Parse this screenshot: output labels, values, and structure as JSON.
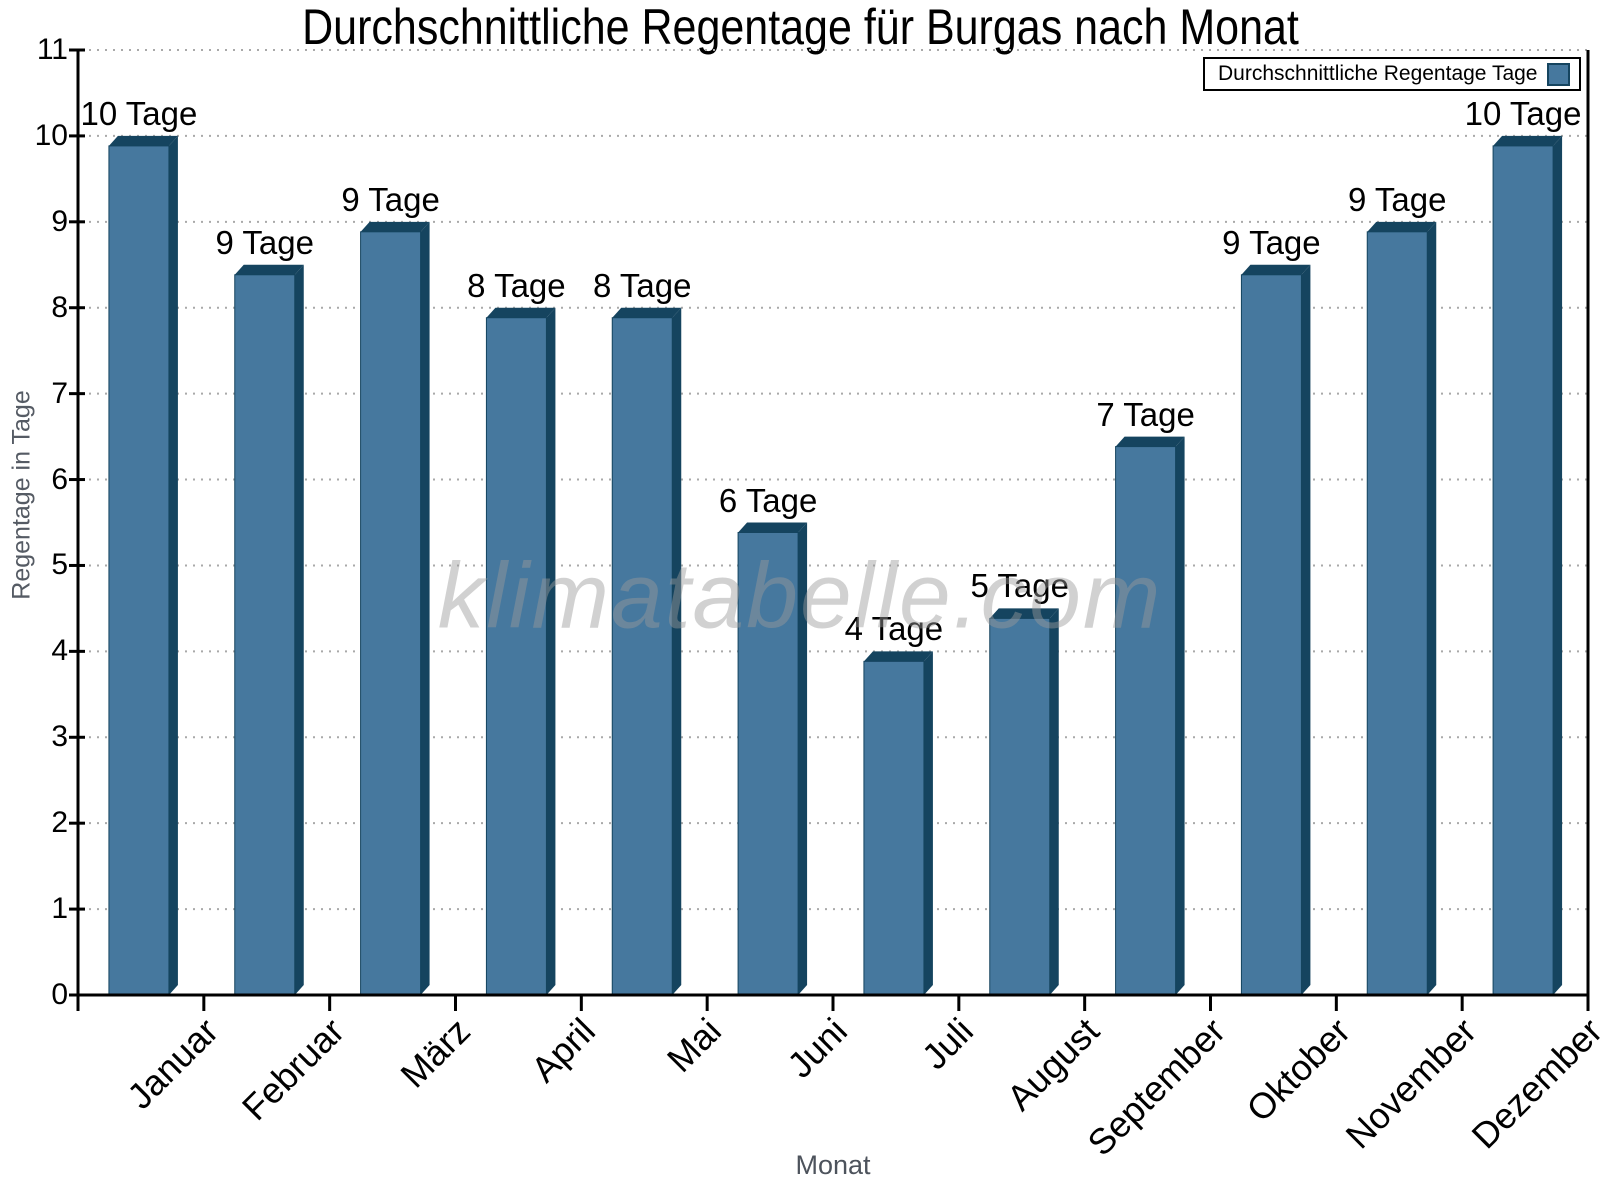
{
  "title": "Durchschnittliche Regentage für Burgas nach Monat",
  "legend": {
    "label": "Durchschnittliche Regentage Tage"
  },
  "watermark": "klimatabelle.com",
  "colors": {
    "bar_face": "#46789E",
    "bar_side": "#15445F",
    "grid": "#a9a9a9",
    "axis": "#000000",
    "axis_title": "#555b64"
  },
  "chart_data": {
    "type": "bar",
    "title": "Durchschnittliche Regentage für Burgas nach Monat",
    "xlabel": "Monat",
    "ylabel": "Regentage in Tage",
    "ylim": [
      0,
      11
    ],
    "yticks": [
      0,
      1,
      2,
      3,
      4,
      5,
      6,
      7,
      8,
      9,
      10,
      11
    ],
    "grid": true,
    "legend_entries": [
      "Durchschnittliche Regentage Tage"
    ],
    "legend_position": "top-right",
    "categories": [
      "Januar",
      "Februar",
      "März",
      "April",
      "Mai",
      "Juni",
      "Juli",
      "August",
      "September",
      "Oktober",
      "November",
      "Dezember"
    ],
    "series": [
      {
        "name": "Durchschnittliche Regentage Tage",
        "values": [
          10,
          8.5,
          9,
          8,
          8,
          5.5,
          4,
          4.5,
          6.5,
          8.5,
          9,
          10
        ],
        "point_labels": [
          "10 Tage",
          "9 Tage",
          "9 Tage",
          "8 Tage",
          "8 Tage",
          "6 Tage",
          "4 Tage",
          "5 Tage",
          "7 Tage",
          "9 Tage",
          "9 Tage",
          "10 Tage"
        ]
      }
    ]
  }
}
